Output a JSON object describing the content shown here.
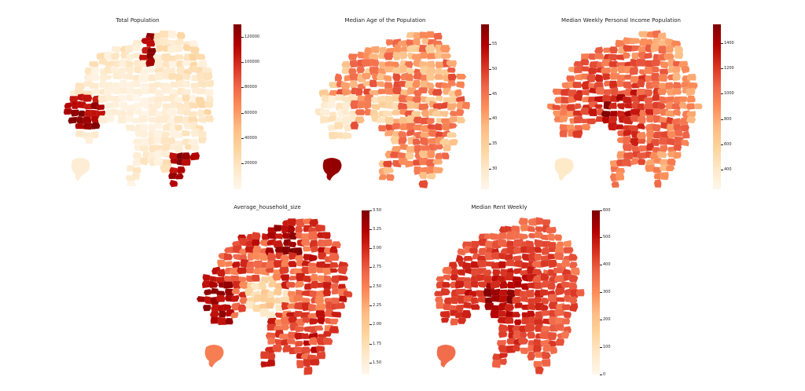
{
  "maps": [
    {
      "id": "total-population",
      "title": "Total Population",
      "scale": "population",
      "colorbar": {
        "min": 0,
        "max": 130000,
        "ticks": [
          "20000",
          "40000",
          "60000",
          "80000",
          "100000",
          "120000"
        ],
        "tick_values": [
          20000,
          40000,
          60000,
          80000,
          100000,
          120000
        ]
      }
    },
    {
      "id": "median-age",
      "title": "Median Age of the Population",
      "scale": "age",
      "colorbar": {
        "min": 26,
        "max": 59,
        "ticks": [
          "30",
          "35",
          "40",
          "45",
          "50",
          "55"
        ],
        "tick_values": [
          30,
          35,
          40,
          45,
          50,
          55
        ]
      }
    },
    {
      "id": "median-income",
      "title": "Median Weekly Personal Income Population",
      "scale": "income",
      "colorbar": {
        "min": 250,
        "max": 1550,
        "ticks": [
          "400",
          "600",
          "800",
          "1000",
          "1200",
          "1400"
        ],
        "tick_values": [
          400,
          600,
          800,
          1000,
          1200,
          1400
        ]
      }
    },
    {
      "id": "household-size",
      "title": "Average_household_size",
      "scale": "household",
      "colorbar": {
        "min": 1.35,
        "max": 3.5,
        "ticks": [
          "1.50",
          "1.75",
          "2.00",
          "2.25",
          "2.50",
          "2.75",
          "3.00",
          "3.25",
          "3.50"
        ],
        "tick_values": [
          1.5,
          1.75,
          2.0,
          2.25,
          2.5,
          2.75,
          3.0,
          3.25,
          3.5
        ]
      }
    },
    {
      "id": "median-rent",
      "title": "Median Rent Weekly",
      "scale": "rent",
      "colorbar": {
        "min": 0,
        "max": 600,
        "ticks": [
          "0",
          "100",
          "200",
          "300",
          "400",
          "500",
          "600"
        ],
        "tick_values": [
          0,
          100,
          200,
          300,
          400,
          500,
          600
        ]
      }
    }
  ],
  "colormap": [
    "#fff5eb",
    "#fee6ce",
    "#fdd0a2",
    "#fdae6b",
    "#fd8d3c",
    "#f16913",
    "#d94801",
    "#a63603",
    "#7f2704"
  ],
  "colormap_name": "OrRd",
  "colormap_stops": [
    "#fff7ec",
    "#fee8c8",
    "#fdd49e",
    "#fdbb84",
    "#fc8d59",
    "#ef6548",
    "#d7301f",
    "#b30000",
    "#7f0000"
  ]
}
